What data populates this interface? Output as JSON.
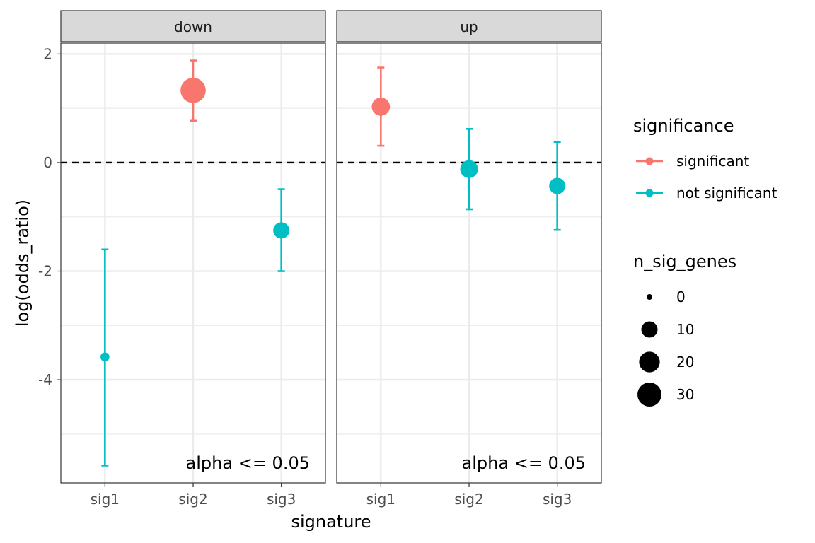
{
  "chart_data": {
    "type": "scatter",
    "facets": [
      "down",
      "up"
    ],
    "categories": [
      "sig1",
      "sig2",
      "sig3"
    ],
    "xlabel": "signature",
    "ylabel": "log(odds_ratio)",
    "ylim": [
      -5.9,
      2.2
    ],
    "yticks": [
      2,
      0,
      -2,
      -4
    ],
    "reference_line": 0,
    "annotation": "alpha <= 0.05",
    "grid": true,
    "legend_position": "right",
    "colors": {
      "significant": "#f8766d",
      "not significant": "#00bfc4"
    },
    "legend_significance": {
      "title": "significance",
      "entries": [
        "significant",
        "not significant"
      ]
    },
    "legend_size": {
      "title": "n_sig_genes",
      "entries": [
        0,
        10,
        20,
        30
      ]
    },
    "points": [
      {
        "facet": "down",
        "signature": "sig1",
        "value": -3.58,
        "lower": -5.58,
        "upper": -1.6,
        "significance": "not significant",
        "n_sig_genes": 1
      },
      {
        "facet": "down",
        "signature": "sig2",
        "value": 1.33,
        "lower": 0.77,
        "upper": 1.88,
        "significance": "significant",
        "n_sig_genes": 34
      },
      {
        "facet": "down",
        "signature": "sig3",
        "value": -1.25,
        "lower": -2.0,
        "upper": -0.49,
        "significance": "not significant",
        "n_sig_genes": 10
      },
      {
        "facet": "up",
        "signature": "sig1",
        "value": 1.03,
        "lower": 0.31,
        "upper": 1.75,
        "significance": "significant",
        "n_sig_genes": 14
      },
      {
        "facet": "up",
        "signature": "sig2",
        "value": -0.12,
        "lower": -0.86,
        "upper": 0.62,
        "significance": "not significant",
        "n_sig_genes": 13
      },
      {
        "facet": "up",
        "signature": "sig3",
        "value": -0.43,
        "lower": -1.24,
        "upper": 0.38,
        "significance": "not significant",
        "n_sig_genes": 10
      }
    ]
  }
}
